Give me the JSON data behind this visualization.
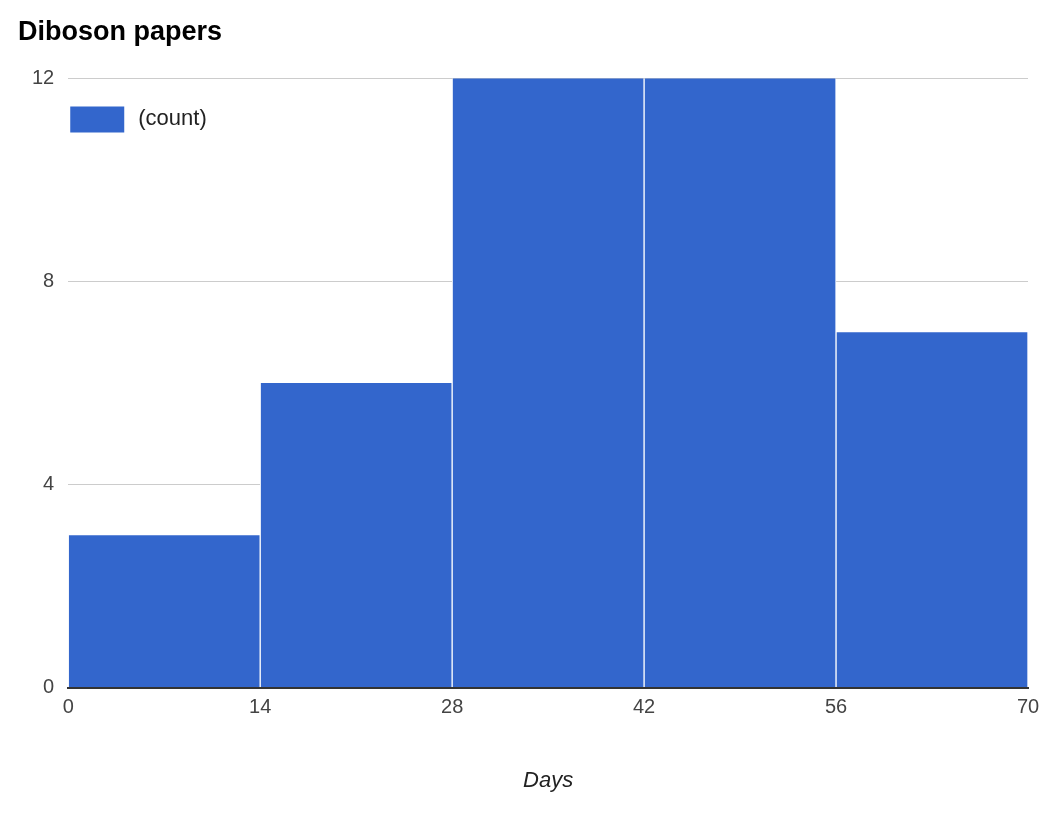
{
  "chart_data": {
    "type": "histogram",
    "title": "Diboson papers",
    "xlabel": "Days",
    "bins": [
      0,
      14,
      28,
      42,
      56,
      70
    ],
    "series": [
      {
        "name": "(count)",
        "color": "#3366cc",
        "values": [
          3,
          6,
          12,
          12,
          7
        ]
      }
    ],
    "xlim": [
      0,
      70
    ],
    "xticks": [
      0,
      14,
      28,
      42,
      56,
      70
    ],
    "ylim": [
      0,
      12
    ],
    "yticks": [
      0,
      4,
      8,
      12
    ],
    "grid": "y",
    "legend": "top left"
  }
}
